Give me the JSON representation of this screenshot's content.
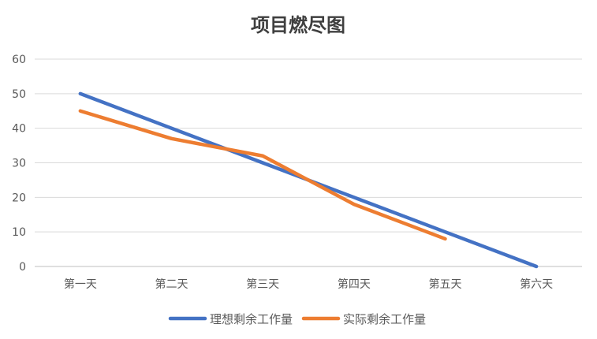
{
  "chart_data": {
    "type": "line",
    "title": "项目燃尽图",
    "xlabel": "",
    "ylabel": "",
    "categories": [
      "第一天",
      "第二天",
      "第三天",
      "第四天",
      "第五天",
      "第六天"
    ],
    "ylim": [
      0,
      60
    ],
    "yticks": [
      0,
      10,
      20,
      30,
      40,
      50,
      60
    ],
    "grid": true,
    "legend_position": "bottom",
    "series": [
      {
        "name": "理想剩余工作量",
        "color": "#4472C4",
        "values": [
          50,
          40,
          30,
          20,
          10,
          0
        ]
      },
      {
        "name": "实际剩余工作量",
        "color": "#ED7D31",
        "values": [
          45,
          37,
          32,
          18,
          8,
          null
        ]
      }
    ]
  }
}
